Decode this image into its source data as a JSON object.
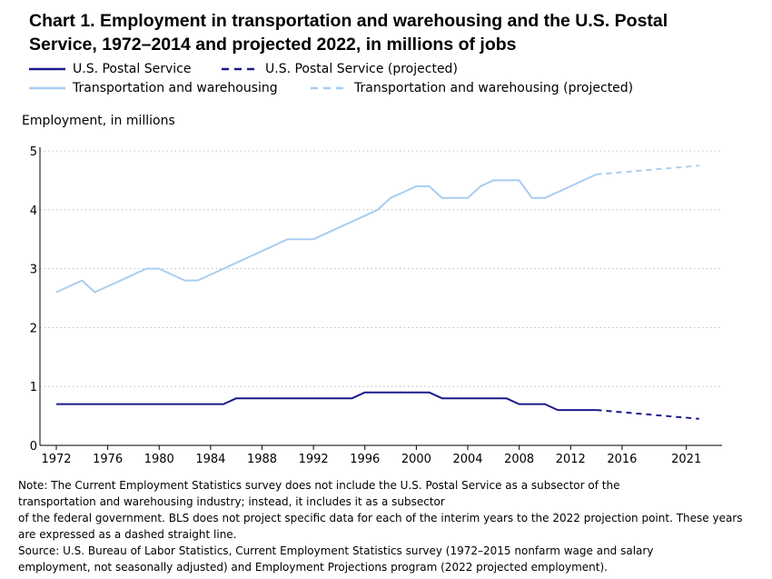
{
  "chart_data": {
    "type": "line",
    "title_line1": "Chart 1. Employment in transportation and warehousing and the U.S. Postal",
    "title_line2": "Service, 1972–2014 and projected 2022, in millions of jobs",
    "ylabel": "Employment, in millions",
    "xlim": [
      1972,
      2023
    ],
    "ylim": [
      0,
      5
    ],
    "y_ticks": [
      0,
      1,
      2,
      3,
      4,
      5
    ],
    "x_ticks": [
      "1972",
      "1976",
      "1980",
      "1984",
      "1988",
      "1992",
      "1996",
      "2000",
      "2004",
      "2008",
      "2012",
      "2016",
      "2021"
    ],
    "x_tick_values": [
      1972,
      1976,
      1980,
      1984,
      1988,
      1992,
      1996,
      2000,
      2004,
      2008,
      2012,
      2016,
      2021
    ],
    "grid": "horizontal dotted",
    "legend_placement": "top",
    "legend": [
      {
        "label": "U.S. Postal Service",
        "color": "#1a1a8c",
        "dash": false
      },
      {
        "label": "U.S. Postal Service (projected)",
        "color": "#1a1a8c",
        "dash": true
      },
      {
        "label": "Transportation and warehousing",
        "color": "#a8cdf0",
        "dash": false
      },
      {
        "label": "Transportation and warehousing (projected)",
        "color": "#a8cdf0",
        "dash": true
      }
    ],
    "series": [
      {
        "name": "U.S. Postal Service",
        "color": "#1a1a8c",
        "x": [
          1972,
          1973,
          1974,
          1975,
          1976,
          1977,
          1978,
          1979,
          1980,
          1981,
          1982,
          1983,
          1984,
          1985,
          1986,
          1987,
          1988,
          1989,
          1990,
          1991,
          1992,
          1993,
          1994,
          1995,
          1996,
          1997,
          1998,
          1999,
          2000,
          2001,
          2002,
          2003,
          2004,
          2005,
          2006,
          2007,
          2008,
          2009,
          2010,
          2011,
          2012,
          2013,
          2014
        ],
        "values": [
          0.7,
          0.7,
          0.7,
          0.7,
          0.7,
          0.7,
          0.7,
          0.7,
          0.7,
          0.7,
          0.7,
          0.7,
          0.7,
          0.7,
          0.8,
          0.8,
          0.8,
          0.8,
          0.8,
          0.8,
          0.8,
          0.8,
          0.8,
          0.8,
          0.9,
          0.9,
          0.9,
          0.9,
          0.9,
          0.9,
          0.8,
          0.8,
          0.8,
          0.8,
          0.8,
          0.8,
          0.7,
          0.7,
          0.7,
          0.6,
          0.6,
          0.6,
          0.6
        ]
      },
      {
        "name": "U.S. Postal Service (projected)",
        "color": "#1a1a8c",
        "dashed": true,
        "x": [
          2014,
          2022
        ],
        "values": [
          0.6,
          0.45
        ]
      },
      {
        "name": "Transportation and warehousing",
        "color": "#a8cdf0",
        "x": [
          1972,
          1973,
          1974,
          1975,
          1976,
          1977,
          1978,
          1979,
          1980,
          1981,
          1982,
          1983,
          1984,
          1985,
          1986,
          1987,
          1988,
          1989,
          1990,
          1991,
          1992,
          1993,
          1994,
          1995,
          1996,
          1997,
          1998,
          1999,
          2000,
          2001,
          2002,
          2003,
          2004,
          2005,
          2006,
          2007,
          2008,
          2009,
          2010,
          2011,
          2012,
          2013,
          2014
        ],
        "values": [
          2.6,
          2.7,
          2.8,
          2.6,
          2.7,
          2.8,
          2.9,
          3.0,
          3.0,
          2.9,
          2.8,
          2.8,
          2.9,
          3.0,
          3.1,
          3.2,
          3.3,
          3.4,
          3.5,
          3.5,
          3.5,
          3.6,
          3.7,
          3.8,
          3.9,
          4.0,
          4.2,
          4.3,
          4.4,
          4.4,
          4.2,
          4.2,
          4.2,
          4.4,
          4.5,
          4.5,
          4.5,
          4.2,
          4.2,
          4.3,
          4.4,
          4.5,
          4.6
        ]
      },
      {
        "name": "Transportation and warehousing (projected)",
        "color": "#a8cdf0",
        "dashed": true,
        "x": [
          2014,
          2022
        ],
        "values": [
          4.6,
          4.75
        ]
      }
    ]
  },
  "notes": {
    "line1": "Note: The Current Employment Statistics survey does not include the U.S. Postal Service as a subsector of the",
    "line2": "transportation and warehousing industry; instead, it includes it as a subsector",
    "line3": "of the federal government. BLS does not project specific data for each of the interim years to the 2022 projection point. These years",
    "line4": "are expressed as a dashed straight line.",
    "line5": "Source: U.S. Bureau of Labor Statistics, Current Employment Statistics survey (1972–2015 nonfarm wage and salary",
    "line6": "employment, not seasonally adjusted) and Employment Projections program (2022 projected employment)."
  }
}
